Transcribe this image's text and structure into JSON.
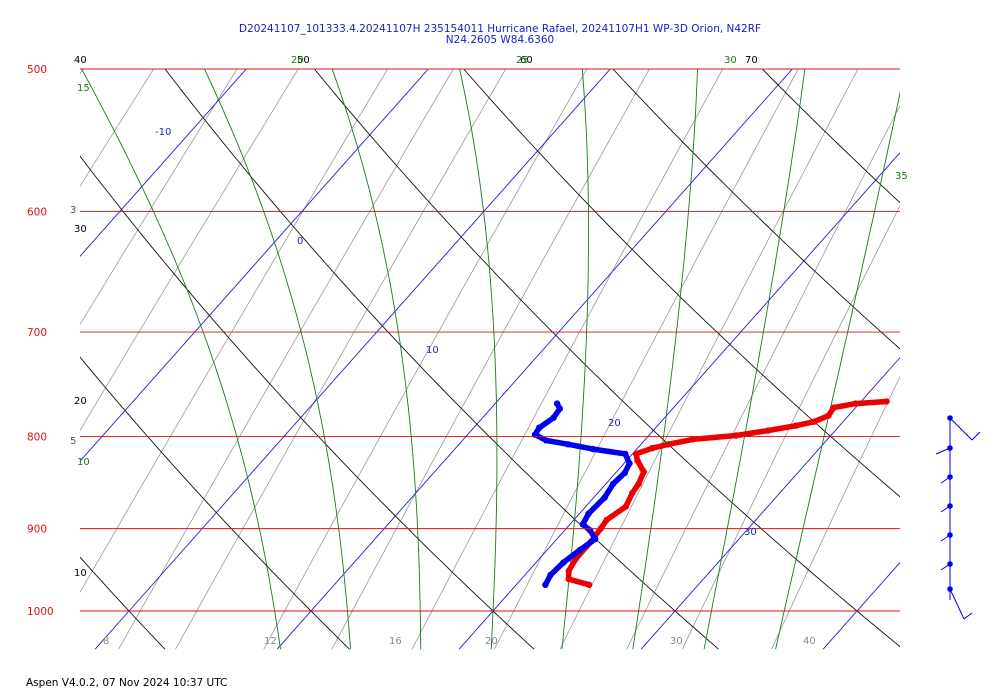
{
  "window": {
    "title_line1": "D20241107_101333.4.20241107H 235154011 Hurricane Rafael, 20241107H1 WP-3D Orion, N42RF",
    "title_line2": "N24.2605 W84.6360",
    "footer": "Aspen V4.0.2, 07 Nov 2024  10:37 UTC"
  },
  "chart_data": {
    "type": "line",
    "subtype": "skew-t log-p",
    "title": "D20241107_101333.4.20241107H 235154011 Hurricane Rafael, 20241107H1 WP-3D Orion, N42RF",
    "subtitle": "N24.2605 W84.6360",
    "xlabel": "",
    "ylabel": "",
    "ylim": [
      1000,
      500
    ],
    "x_range": [
      -10,
      32
    ],
    "y_scale": "log",
    "pressure_levels": [
      "500",
      "600",
      "700",
      "800",
      "900",
      "1000"
    ],
    "isotherm_labels": [
      "-10",
      "0",
      "10",
      "20",
      "30"
    ],
    "dry_adiabat_labels": [
      "40",
      "30",
      "20",
      "10"
    ],
    "dry_adiabat_labels_top": [
      "50",
      "60",
      "70"
    ],
    "moist_adiabat_labels": [
      "15",
      "20",
      "25",
      "30",
      "35",
      "10",
      "5",
      "3"
    ],
    "mixing_ratio_labels": [
      "8",
      "12",
      "16",
      "20",
      "30",
      "40"
    ],
    "colors": {
      "pressure_lines": "#dd1111",
      "isotherms": "#2020cc",
      "dry_adiabats": "#111111",
      "moist_adiabats": "#1a7a1a",
      "mixing_ratio": "#9a9a9a",
      "temperature": "#ee0000",
      "dewpoint": "#0000ee"
    },
    "grid": true,
    "series": [
      {
        "name": "",
        "role": "temperature",
        "values": [
          [
            967,
            24.0
          ],
          [
            960,
            22.6
          ],
          [
            950,
            22.2
          ],
          [
            935,
            22.0
          ],
          [
            915,
            22.0
          ],
          [
            900,
            21.9
          ],
          [
            890,
            21.8
          ],
          [
            875,
            22.2
          ],
          [
            860,
            21.9
          ],
          [
            850,
            21.8
          ],
          [
            837,
            21.5
          ],
          [
            825,
            20.6
          ],
          [
            818,
            20.2
          ],
          [
            812,
            20.8
          ],
          [
            808,
            21.5
          ],
          [
            803,
            22.6
          ],
          [
            799,
            24.8
          ],
          [
            794,
            26.3
          ],
          [
            789,
            27.6
          ],
          [
            785,
            28.4
          ],
          [
            779,
            28.9
          ],
          [
            771,
            28.8
          ],
          [
            767,
            29.8
          ],
          [
            765,
            31.4
          ]
        ]
      },
      {
        "name": "",
        "role": "dewpoint",
        "values": [
          [
            967,
            21.6
          ],
          [
            955,
            21.4
          ],
          [
            940,
            21.5
          ],
          [
            925,
            21.8
          ],
          [
            912,
            22.1
          ],
          [
            902,
            21.4
          ],
          [
            895,
            20.7
          ],
          [
            883,
            20.5
          ],
          [
            865,
            20.6
          ],
          [
            850,
            20.4
          ],
          [
            838,
            20.5
          ],
          [
            828,
            20.3
          ],
          [
            818,
            19.6
          ],
          [
            813,
            17.6
          ],
          [
            808,
            16.0
          ],
          [
            804,
            14.6
          ],
          [
            798,
            13.7
          ],
          [
            791,
            13.6
          ],
          [
            781,
            13.9
          ],
          [
            772,
            13.8
          ],
          [
            767,
            13.4
          ]
        ]
      }
    ],
    "wind_barbs": {
      "pressures": [
        780,
        820,
        850,
        875,
        900,
        925,
        945
      ],
      "speeds_kt": [
        15,
        15,
        10,
        10,
        10,
        10,
        15
      ]
    }
  }
}
